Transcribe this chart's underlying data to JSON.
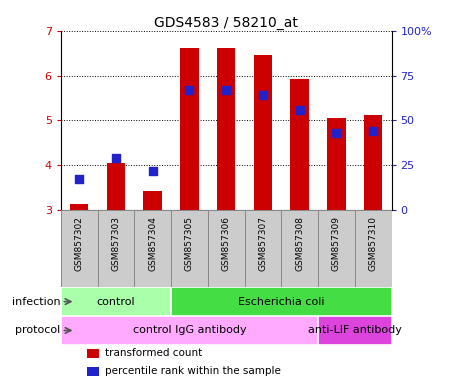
{
  "title": "GDS4583 / 58210_at",
  "samples": [
    "GSM857302",
    "GSM857303",
    "GSM857304",
    "GSM857305",
    "GSM857306",
    "GSM857307",
    "GSM857308",
    "GSM857309",
    "GSM857310"
  ],
  "transformed_count": [
    3.15,
    4.05,
    3.42,
    6.62,
    6.62,
    6.45,
    5.93,
    5.05,
    5.13
  ],
  "percentile_rank_scaled": [
    3.7,
    4.17,
    3.88,
    5.68,
    5.68,
    5.57,
    5.24,
    4.72,
    4.77
  ],
  "ylim_left": [
    3.0,
    7.0
  ],
  "ylim_right": [
    0,
    100
  ],
  "yticks_left": [
    3,
    4,
    5,
    6,
    7
  ],
  "yticks_right": [
    0,
    25,
    50,
    75,
    100
  ],
  "ytick_right_labels": [
    "0",
    "25",
    "50",
    "75",
    "100%"
  ],
  "bar_color": "#cc0000",
  "dot_color": "#2222cc",
  "bar_width": 0.5,
  "dot_size": 28,
  "infection_groups": [
    {
      "label": "control",
      "start": 0,
      "end": 3,
      "color": "#aaffaa"
    },
    {
      "label": "Escherichia coli",
      "start": 3,
      "end": 9,
      "color": "#44dd44"
    }
  ],
  "protocol_groups": [
    {
      "label": "control IgG antibody",
      "start": 0,
      "end": 7,
      "color": "#ffaaff"
    },
    {
      "label": "anti-LIF antibody",
      "start": 7,
      "end": 9,
      "color": "#dd44dd"
    }
  ],
  "legend_items": [
    {
      "label": "transformed count",
      "color": "#cc0000"
    },
    {
      "label": "percentile rank within the sample",
      "color": "#2222cc"
    }
  ],
  "infection_label": "infection",
  "protocol_label": "protocol",
  "sample_box_color": "#cccccc",
  "sample_box_edge": "#888888"
}
